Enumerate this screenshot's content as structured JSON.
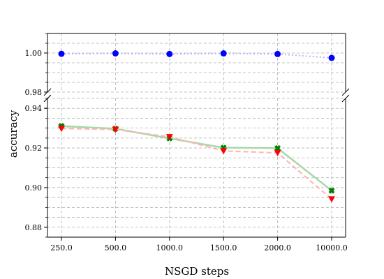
{
  "chart_data": {
    "type": "line",
    "broken_y_axis": true,
    "xlabel": "NSGD steps",
    "ylabel": "accuracy",
    "categories": [
      "250.0",
      "500.0",
      "1000.0",
      "1500.0",
      "2000.0",
      "10000.0"
    ],
    "grid": true,
    "grid_style": "dashed",
    "panels": [
      {
        "position": "top",
        "ylim": [
          0.98,
          1.01
        ],
        "yticks": [
          0.98,
          1.0
        ],
        "ytick_labels": [
          "0.98",
          "1.00"
        ],
        "minor_step": 0.005
      },
      {
        "position": "bottom",
        "ylim": [
          0.875,
          0.945
        ],
        "yticks": [
          0.88,
          0.9,
          0.92,
          0.94
        ],
        "ytick_labels": [
          "0.88",
          "0.90",
          "0.92",
          "0.94"
        ],
        "minor_step": 0.005
      }
    ],
    "series": [
      {
        "values": [
          0.9996,
          0.9998,
          0.9995,
          0.9998,
          0.9995,
          0.9975
        ],
        "panel": "top",
        "color": "#0000ff",
        "line_color": "#b3b3ff",
        "line_style": "dotted",
        "marker": "circle"
      },
      {
        "values": [
          0.931,
          0.9297,
          0.9248,
          0.9201,
          0.9199,
          0.8985
        ],
        "panel": "bottom",
        "color": "#008000",
        "line_color": "#a8d8a8",
        "line_style": "solid",
        "marker": "x"
      },
      {
        "values": [
          0.9298,
          0.9293,
          0.9256,
          0.9185,
          0.9175,
          0.8942
        ],
        "panel": "bottom",
        "color": "#ff0000",
        "line_color": "#ffb3b3",
        "line_style": "dashed",
        "marker": "triangle-down"
      }
    ]
  }
}
